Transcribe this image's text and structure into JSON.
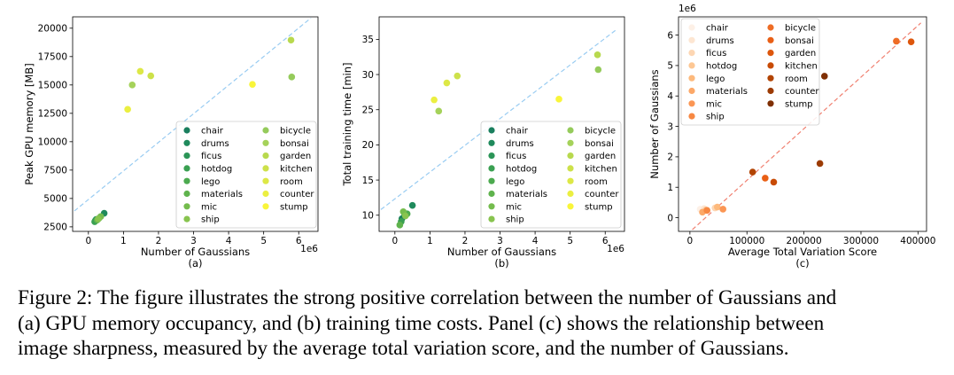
{
  "figure": {
    "caption_lines": [
      "Figure 2: The figure illustrates the strong positive correlation between the number of Gaussians and",
      "(a) GPU memory occupancy, and (b) training time costs. Panel (c) shows the relationship between",
      "image sharpness, measured by the average total variation score, and the number of Gaussians."
    ]
  },
  "scenes": [
    "chair",
    "drums",
    "ficus",
    "hotdog",
    "lego",
    "materials",
    "mic",
    "ship",
    "bicycle",
    "bonsai",
    "garden",
    "kitchen",
    "room",
    "counter",
    "stump"
  ],
  "colors": {
    "greens": [
      "#1a7f5e",
      "#1f8a5c",
      "#2b9557",
      "#3aa052",
      "#4caa4f",
      "#5fb34d",
      "#74bc4d",
      "#88c44f",
      "#95cb5b",
      "#a5d25a",
      "#b8d94e",
      "#cde14a",
      "#dde846",
      "#ebef41",
      "#f9f53a"
    ],
    "oranges": [
      "#fdf0e6",
      "#fde6d2",
      "#fdd6b3",
      "#fdc794",
      "#fdb97c",
      "#fca868",
      "#fb9654",
      "#f78843",
      "#ee6c25",
      "#e95f15",
      "#dd560c",
      "#c84b05",
      "#b24403",
      "#9c3b04",
      "#7f2f03"
    ],
    "trend_blue": "#99ccf2",
    "trend_salmon": "#f08070"
  },
  "chart_data": [
    {
      "type": "scatter",
      "panel_label": "(a)",
      "xlabel": "Number of Gaussians",
      "ylabel": "Peak GPU memory [MB]",
      "x_offset_text": "1e6",
      "xlim": [
        -0.45,
        6.55
      ],
      "ylim": [
        2100,
        21000
      ],
      "xticks": [
        0,
        1,
        2,
        3,
        4,
        5,
        6
      ],
      "yticks": [
        2500,
        5000,
        7500,
        10000,
        12500,
        15000,
        17500,
        20000
      ],
      "trend": {
        "x": [
          -0.4,
          6.35
        ],
        "y": [
          3900,
          20900
        ]
      },
      "legend_placement": "lower-right",
      "series": [
        {
          "name": "chair",
          "x": 0.2,
          "y": 3050
        },
        {
          "name": "drums",
          "x": 0.45,
          "y": 3700
        },
        {
          "name": "ficus",
          "x": 0.22,
          "y": 3150
        },
        {
          "name": "hotdog",
          "x": 0.18,
          "y": 2950
        },
        {
          "name": "lego",
          "x": 0.3,
          "y": 3250
        },
        {
          "name": "materials",
          "x": 0.25,
          "y": 3100
        },
        {
          "name": "mic",
          "x": 0.35,
          "y": 3400
        },
        {
          "name": "ship",
          "x": 0.28,
          "y": 3200
        },
        {
          "name": "bicycle",
          "x": 5.8,
          "y": 15700
        },
        {
          "name": "bonsai",
          "x": 1.25,
          "y": 15000
        },
        {
          "name": "garden",
          "x": 5.78,
          "y": 18950
        },
        {
          "name": "kitchen",
          "x": 1.78,
          "y": 15800
        },
        {
          "name": "room",
          "x": 1.48,
          "y": 16200
        },
        {
          "name": "counter",
          "x": 1.12,
          "y": 12850
        },
        {
          "name": "stump",
          "x": 4.68,
          "y": 15050
        }
      ]
    },
    {
      "type": "scatter",
      "panel_label": "(b)",
      "xlabel": "Number of Gaussians",
      "ylabel": "Total training time [min]",
      "x_offset_text": "1e6",
      "xlim": [
        -0.45,
        6.55
      ],
      "ylim": [
        7.7,
        38.2
      ],
      "xticks": [
        0,
        1,
        2,
        3,
        4,
        5,
        6
      ],
      "yticks": [
        10,
        15,
        20,
        25,
        30,
        35
      ],
      "trend": {
        "x": [
          -0.4,
          6.35
        ],
        "y": [
          10.8,
          36.5
        ]
      },
      "legend_placement": "lower-right",
      "series": [
        {
          "name": "chair",
          "x": 0.2,
          "y": 9.5
        },
        {
          "name": "drums",
          "x": 0.5,
          "y": 11.4
        },
        {
          "name": "ficus",
          "x": 0.28,
          "y": 10.1
        },
        {
          "name": "hotdog",
          "x": 0.18,
          "y": 9.1
        },
        {
          "name": "lego",
          "x": 0.35,
          "y": 10.2
        },
        {
          "name": "materials",
          "x": 0.14,
          "y": 8.6
        },
        {
          "name": "mic",
          "x": 0.24,
          "y": 10.5
        },
        {
          "name": "ship",
          "x": 0.3,
          "y": 9.9
        },
        {
          "name": "bicycle",
          "x": 5.8,
          "y": 30.7
        },
        {
          "name": "bonsai",
          "x": 1.25,
          "y": 24.8
        },
        {
          "name": "garden",
          "x": 5.78,
          "y": 32.8
        },
        {
          "name": "kitchen",
          "x": 1.78,
          "y": 29.8
        },
        {
          "name": "room",
          "x": 1.48,
          "y": 28.8
        },
        {
          "name": "counter",
          "x": 1.12,
          "y": 26.4
        },
        {
          "name": "stump",
          "x": 4.68,
          "y": 26.5
        }
      ]
    },
    {
      "type": "scatter",
      "panel_label": "(c)",
      "xlabel": "Average Total Variation Score",
      "ylabel": "Number of Gaussians",
      "y_offset_text": "1e6",
      "xlim": [
        -20000,
        415000
      ],
      "ylim": [
        -0.45,
        6.6
      ],
      "xticks": [
        0,
        100000,
        200000,
        300000,
        400000
      ],
      "yticks": [
        0,
        1,
        2,
        3,
        4,
        5,
        6
      ],
      "trend": {
        "x": [
          -5000,
          405000
        ],
        "y": [
          -0.55,
          6.4
        ]
      },
      "legend_placement": "upper-left",
      "series": [
        {
          "name": "chair",
          "x": 18000,
          "y": 0.28
        },
        {
          "name": "drums",
          "x": 25000,
          "y": 0.3
        },
        {
          "name": "ficus",
          "x": 44000,
          "y": 0.32
        },
        {
          "name": "hotdog",
          "x": 28000,
          "y": 0.25
        },
        {
          "name": "lego",
          "x": 48000,
          "y": 0.35
        },
        {
          "name": "materials",
          "x": 22000,
          "y": 0.18
        },
        {
          "name": "mic",
          "x": 58000,
          "y": 0.28
        },
        {
          "name": "ship",
          "x": 30000,
          "y": 0.24
        },
        {
          "name": "bicycle",
          "x": 362000,
          "y": 5.8
        },
        {
          "name": "bonsai",
          "x": 132000,
          "y": 1.3
        },
        {
          "name": "garden",
          "x": 388000,
          "y": 5.78
        },
        {
          "name": "kitchen",
          "x": 147000,
          "y": 1.17
        },
        {
          "name": "room",
          "x": 110000,
          "y": 1.5
        },
        {
          "name": "counter",
          "x": 228000,
          "y": 1.78
        },
        {
          "name": "stump",
          "x": 236000,
          "y": 4.65
        }
      ]
    }
  ]
}
